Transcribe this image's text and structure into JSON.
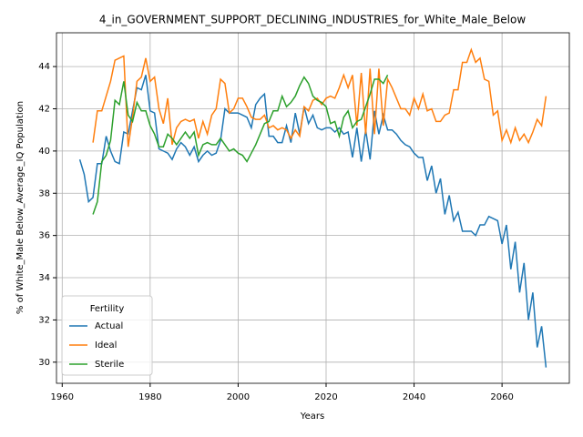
{
  "chart_data": {
    "type": "line",
    "title": "4_in_GOVERNMENT_SUPPORT_DECLINING_INDUSTRIES_for_White_Male_Below",
    "xlabel": "Years",
    "ylabel": "% of White_Male Below_Average_IQ Population",
    "legend_title": "Fertility",
    "legend": "lower left",
    "grid": true,
    "xlim": [
      1958.7,
      2075.3
    ],
    "ylim": [
      29.0,
      45.6
    ],
    "xticks": [
      1960,
      1980,
      2000,
      2020,
      2040,
      2060
    ],
    "yticks": [
      30,
      32,
      34,
      36,
      38,
      40,
      42,
      44
    ],
    "x": [
      1964,
      1965,
      1966,
      1967,
      1968,
      1969,
      1970,
      1971,
      1972,
      1973,
      1974,
      1975,
      1976,
      1977,
      1978,
      1979,
      1980,
      1981,
      1982,
      1983,
      1984,
      1985,
      1986,
      1987,
      1988,
      1989,
      1990,
      1991,
      1992,
      1993,
      1994,
      1995,
      1996,
      1997,
      1998,
      1999,
      2000,
      2001,
      2002,
      2003,
      2004,
      2005,
      2006,
      2007,
      2008,
      2009,
      2010,
      2011,
      2012,
      2013,
      2014,
      2015,
      2016,
      2017,
      2018,
      2019,
      2020,
      2021,
      2022,
      2023,
      2024,
      2025,
      2026,
      2027,
      2028,
      2029,
      2030,
      2031,
      2032,
      2033,
      2034,
      2035,
      2036,
      2037,
      2038,
      2039,
      2040,
      2041,
      2042,
      2043,
      2044,
      2045,
      2046,
      2047,
      2048,
      2049,
      2050,
      2051,
      2052,
      2053,
      2054,
      2055,
      2056,
      2057,
      2058,
      2059,
      2060,
      2061,
      2062,
      2063,
      2064,
      2065,
      2066,
      2067,
      2068,
      2069,
      2070
    ],
    "series": [
      {
        "name": "Actual",
        "color": "#1f77b4",
        "values": [
          39.6,
          38.9,
          37.6,
          37.8,
          39.4,
          39.4,
          40.7,
          40.0,
          39.5,
          39.4,
          40.9,
          40.8,
          41.9,
          43.0,
          42.9,
          43.6,
          41.9,
          41.8,
          40.1,
          40.0,
          39.9,
          39.6,
          40.1,
          40.4,
          40.2,
          39.8,
          40.2,
          39.5,
          39.8,
          40.0,
          39.8,
          39.9,
          40.5,
          42.0,
          41.8,
          41.8,
          41.8,
          41.7,
          41.6,
          41.1,
          42.2,
          42.5,
          42.7,
          40.7,
          40.7,
          40.4,
          40.4,
          41.2,
          40.4,
          41.8,
          40.8,
          42.1,
          41.3,
          41.7,
          41.1,
          41.0,
          41.1,
          41.1,
          40.9,
          41.1,
          40.8,
          40.9,
          39.7,
          41.1,
          39.5,
          41.0,
          39.6,
          41.9,
          40.8,
          41.7,
          41.0,
          41.0,
          40.8,
          40.5,
          40.3,
          40.2,
          39.9,
          39.7,
          39.7,
          38.6,
          39.3,
          38.0,
          38.7,
          37.0,
          37.9,
          36.7,
          37.1,
          36.2,
          36.2,
          36.2,
          36.0,
          36.5,
          36.5,
          36.9,
          36.8,
          36.7,
          35.6,
          36.5,
          34.4,
          35.7,
          33.3,
          34.7,
          32.0,
          33.3,
          30.7,
          31.7,
          29.75
        ]
      },
      {
        "name": "Ideal",
        "color": "#ff7f0e",
        "values": [
          null,
          null,
          null,
          40.4,
          41.9,
          41.9,
          42.6,
          43.3,
          44.3,
          44.4,
          44.5,
          40.2,
          41.6,
          43.3,
          43.5,
          44.4,
          43.3,
          43.5,
          42.0,
          41.3,
          42.5,
          40.3,
          41.1,
          41.4,
          41.5,
          41.4,
          41.5,
          40.6,
          41.4,
          40.8,
          41.7,
          42.0,
          43.4,
          43.2,
          41.8,
          42.0,
          42.5,
          42.5,
          42.1,
          41.6,
          41.5,
          41.5,
          41.7,
          41.1,
          41.2,
          41.0,
          41.1,
          41.0,
          40.6,
          41.0,
          40.7,
          42.1,
          41.9,
          42.4,
          42.5,
          42.2,
          42.5,
          42.6,
          42.5,
          43.0,
          43.6,
          43.0,
          43.6,
          41.2,
          43.7,
          40.8,
          43.9,
          40.8,
          43.9,
          41.2,
          43.4,
          43.0,
          42.5,
          42.0,
          42.0,
          41.7,
          42.5,
          42.0,
          42.7,
          41.9,
          42.0,
          41.4,
          41.4,
          41.7,
          41.8,
          42.9,
          42.9,
          44.2,
          44.2,
          44.8,
          44.2,
          44.4,
          43.4,
          43.3,
          41.7,
          41.9,
          40.5,
          41.0,
          40.4,
          41.1,
          40.5,
          40.8,
          40.4,
          40.9,
          41.5,
          41.2,
          42.6
        ]
      },
      {
        "name": "Sterile",
        "color": "#2ca02c",
        "values": [
          null,
          null,
          null,
          37.0,
          37.6,
          39.5,
          39.8,
          40.5,
          42.4,
          42.2,
          43.3,
          41.7,
          41.4,
          42.3,
          41.9,
          41.9,
          41.2,
          40.8,
          40.2,
          40.2,
          40.8,
          40.6,
          40.3,
          40.6,
          40.9,
          40.6,
          40.9,
          39.8,
          40.3,
          40.4,
          40.3,
          40.3,
          40.6,
          40.3,
          40.0,
          40.1,
          39.9,
          39.8,
          39.5,
          39.9,
          40.3,
          40.8,
          41.3,
          41.4,
          41.9,
          41.9,
          42.6,
          42.1,
          42.3,
          42.6,
          43.1,
          43.5,
          43.2,
          42.6,
          42.4,
          42.3,
          42.1,
          41.3,
          41.4,
          40.7,
          41.6,
          41.9,
          41.1,
          41.4,
          41.5,
          42.1,
          42.7,
          43.4,
          43.4,
          43.2,
          43.6,
          null,
          null,
          null,
          null,
          null,
          null,
          null,
          null,
          null,
          null,
          null,
          null,
          null,
          null,
          null,
          null,
          null,
          null,
          null,
          null,
          null,
          null,
          null,
          null,
          null,
          null,
          null,
          null,
          null,
          null,
          null,
          null,
          null,
          null,
          null,
          null
        ]
      }
    ]
  }
}
